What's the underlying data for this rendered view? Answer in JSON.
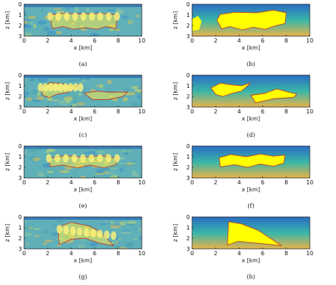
{
  "figure": {
    "panels": [
      {
        "caption": "(a)",
        "kind": "image",
        "colors": {
          "bg": "#5fb0b8",
          "shape": "#f4e94a",
          "outline": "#c0392b"
        }
      },
      {
        "caption": "(b)",
        "kind": "model",
        "colors": {
          "top": "#2b6cc4",
          "mid": "#38b6a8",
          "bottom": "#e8b34a",
          "shape": "#ffff00",
          "outline": "#c0392b"
        }
      },
      {
        "caption": "(c)",
        "kind": "image",
        "colors": {
          "bg": "#5fb0b8",
          "shape": "#f4e94a",
          "outline": "#c0392b"
        }
      },
      {
        "caption": "(d)",
        "kind": "model",
        "colors": {
          "top": "#2b6cc4",
          "mid": "#38b6a8",
          "bottom": "#e8b34a",
          "shape": "#ffff00",
          "outline": "#c0392b"
        }
      },
      {
        "caption": "(e)",
        "kind": "image",
        "colors": {
          "bg": "#5fb0b8",
          "shape": "#f4e94a",
          "outline": "#c0392b"
        }
      },
      {
        "caption": "(f)",
        "kind": "model",
        "colors": {
          "top": "#2b6cc4",
          "mid": "#38b6a8",
          "bottom": "#e8b34a",
          "shape": "#ffff00",
          "outline": "#c0392b"
        }
      },
      {
        "caption": "(g)",
        "kind": "image",
        "colors": {
          "bg": "#5fb0b8",
          "shape": "#f4e94a",
          "outline": "#c0392b"
        }
      },
      {
        "caption": "(h)",
        "kind": "model",
        "colors": {
          "top": "#2b6cc4",
          "mid": "#38b6a8",
          "bottom": "#e8b34a",
          "shape": "#ffff00",
          "outline": "#c0392b"
        }
      }
    ],
    "axes": {
      "xlabel": "x [km]",
      "ylabel": "z [km]",
      "xticks": [
        "0",
        "2",
        "4",
        "6",
        "8",
        "10"
      ],
      "zticks": [
        "0",
        "1",
        "2",
        "3"
      ]
    }
  }
}
